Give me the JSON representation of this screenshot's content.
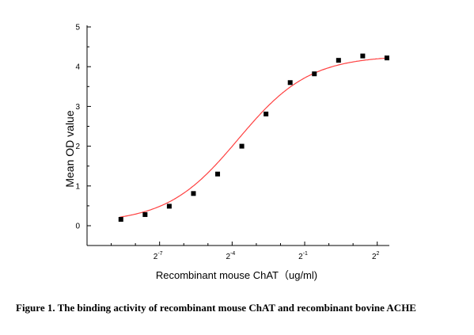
{
  "chart_data": {
    "type": "scatter",
    "title": "",
    "xlabel": "Recombinant mouse ChAT（ug/ml)",
    "ylabel": "Mean OD value",
    "x_scale": "log2",
    "xlim_log2": [
      -10,
      2.5
    ],
    "ylim": [
      0,
      5
    ],
    "yticks": [
      "0",
      "1",
      "2",
      "3",
      "4",
      "5"
    ],
    "xticks": [
      {
        "base": "2",
        "exp": "-7",
        "value_log2": -7
      },
      {
        "base": "2",
        "exp": "-4",
        "value_log2": -4
      },
      {
        "base": "2",
        "exp": "-1",
        "value_log2": -1
      },
      {
        "base": "2",
        "exp": "2",
        "value_log2": 2
      }
    ],
    "grid": false,
    "legend": "none",
    "series": [
      {
        "marker": "square",
        "color": "#000000",
        "points_log2x": [
          -8.6,
          -7.6,
          -6.6,
          -5.6,
          -4.6,
          -3.6,
          -2.6,
          -1.6,
          -0.6,
          0.4,
          1.4,
          2.4
        ],
        "y": [
          0.16,
          0.28,
          0.49,
          0.81,
          1.3,
          2.0,
          2.81,
          3.6,
          3.82,
          4.16,
          4.27,
          4.22
        ]
      }
    ],
    "fit_curve": {
      "type": "4-parameter logistic",
      "color": "#ff4040",
      "bottom": 0.07,
      "top": 4.28,
      "mid_log2": -3.75,
      "slope": 0.68
    }
  },
  "caption": "Figure 1. The binding activity of recombinant mouse ChAT and recombinant bovine ACHE"
}
